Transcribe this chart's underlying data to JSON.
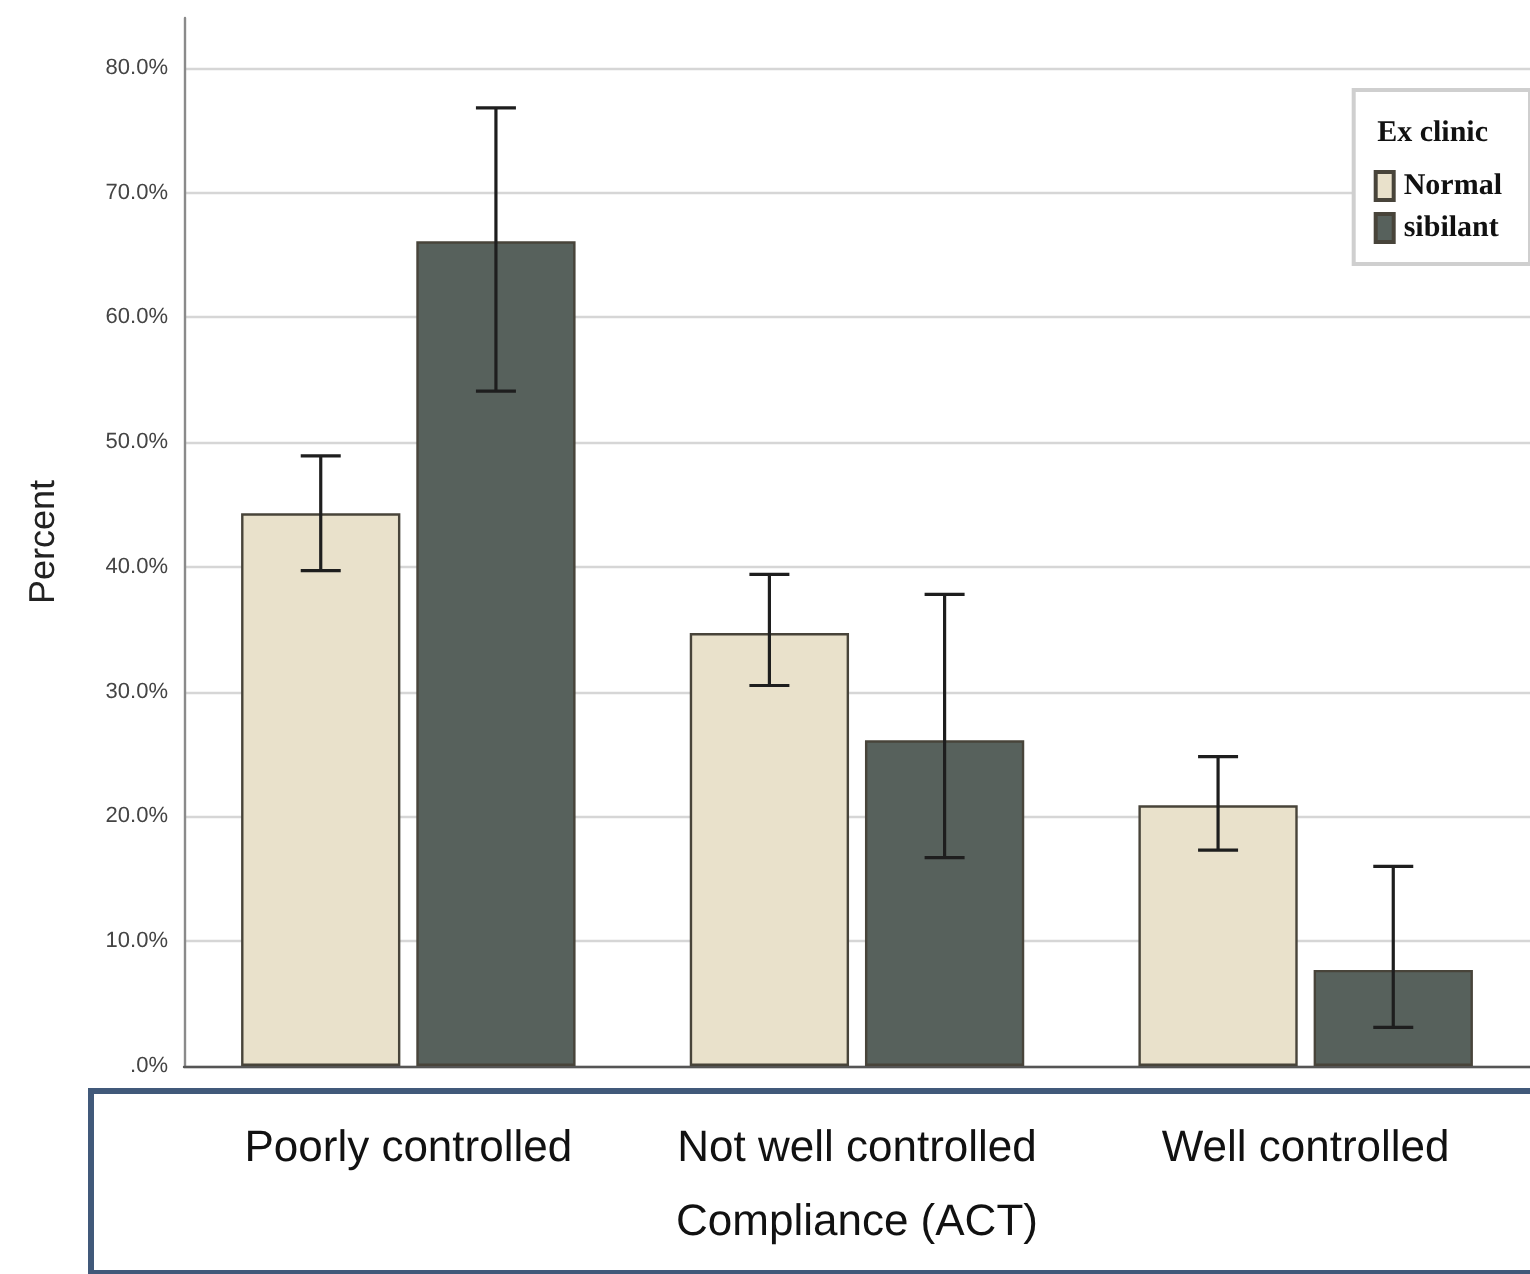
{
  "chart_data": {
    "type": "bar",
    "xlabel": "Compliance (ACT)",
    "ylabel": "Percent",
    "legend_title": "Ex clinic",
    "categories": [
      "Poorly controlled",
      "Not well controlled",
      "Well controlled"
    ],
    "series": [
      {
        "name": "Normal",
        "color": "#e9e1cb",
        "values": [
          44.3,
          34.7,
          20.9
        ],
        "errors": [
          [
            39.7,
            48.9
          ],
          [
            30.5,
            39.4
          ],
          [
            17.3,
            24.8
          ]
        ]
      },
      {
        "name": "sibilant",
        "color": "#57615c",
        "values": [
          66.1,
          26.1,
          7.7
        ],
        "errors": [
          [
            54.1,
            76.8
          ],
          [
            16.7,
            37.8
          ],
          [
            3.1,
            16.0
          ]
        ]
      }
    ],
    "ylim": [
      0,
      84
    ],
    "yticks": [
      {
        "value": 0,
        "label": ".0%"
      },
      {
        "value": 10,
        "label": "10.0%"
      },
      {
        "value": 20,
        "label": "20.0%"
      },
      {
        "value": 30,
        "label": "30.0%"
      },
      {
        "value": 40,
        "label": "40.0%"
      },
      {
        "value": 50,
        "label": "50.0%"
      },
      {
        "value": 60,
        "label": "60.0%"
      },
      {
        "value": 70,
        "label": "70.0%"
      },
      {
        "value": 80,
        "label": "80.0%"
      }
    ],
    "grid": "y",
    "legend": "top right"
  }
}
